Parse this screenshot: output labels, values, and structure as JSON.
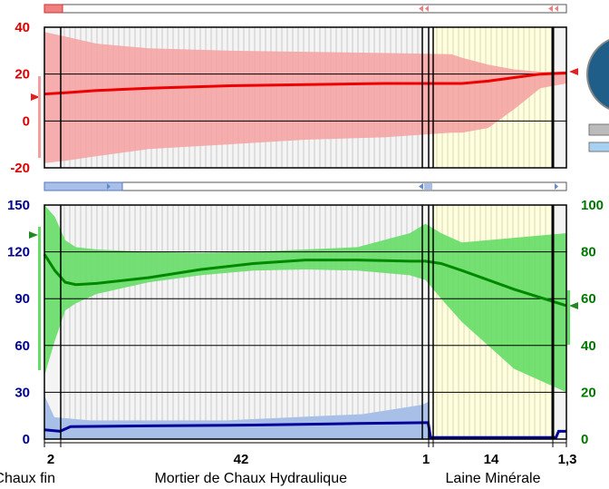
{
  "chart_data": [
    {
      "type": "line",
      "title": "",
      "y_axis": {
        "ticks": [
          "40",
          "20",
          "0",
          "-20"
        ],
        "ylim": [
          -20,
          40
        ],
        "color": "#dd0000"
      },
      "band": {
        "color": "#f4a0a0"
      },
      "series": [
        {
          "color": "#ee0000",
          "x": [
            0,
            0.04,
            0.1,
            0.2,
            0.35,
            0.5,
            0.65,
            0.78,
            0.8,
            0.85,
            0.9,
            0.95,
            1.0
          ],
          "values": [
            11.5,
            12,
            13,
            14,
            15,
            15.5,
            16,
            16,
            16,
            17,
            18.5,
            20,
            20.5
          ]
        }
      ],
      "band_upper": [
        38,
        36,
        33,
        31,
        30,
        29.5,
        29,
        28.5,
        27,
        24,
        22,
        21,
        21
      ],
      "band_lower": [
        -18,
        -17,
        -15,
        -12,
        -10,
        -8,
        -7,
        -5,
        -5,
        -3,
        5,
        14,
        16
      ]
    },
    {
      "type": "line",
      "title": "",
      "y_axis_left": {
        "ticks": [
          "150",
          "120",
          "90",
          "60",
          "30",
          "0"
        ],
        "ylim": [
          0,
          150
        ],
        "color": "#00008b"
      },
      "y_axis_right": {
        "ticks": [
          "100",
          "80",
          "60",
          "40",
          "20",
          "0"
        ],
        "ylim": [
          0,
          100
        ],
        "color": "#007700"
      },
      "bands": {
        "green": "#66dd66",
        "blue": "#a8c0e8"
      },
      "series": [
        {
          "axis": "right",
          "color": "#008800",
          "x": [
            0,
            0.02,
            0.04,
            0.06,
            0.1,
            0.2,
            0.3,
            0.4,
            0.5,
            0.6,
            0.7,
            0.73,
            0.76,
            0.8,
            0.9,
            1.0
          ],
          "values": [
            79,
            72,
            67,
            66,
            66.5,
            69,
            72.5,
            75,
            76.5,
            76.5,
            76,
            76,
            75,
            72,
            64,
            57
          ]
        },
        {
          "axis": "left",
          "color": "#000099",
          "x": [
            0,
            0.03,
            0.05,
            0.2,
            0.4,
            0.6,
            0.73,
            0.735,
            0.74,
            0.98,
            0.985,
            1.0
          ],
          "values": [
            6,
            5,
            8,
            8.5,
            9,
            10,
            10.5,
            10.5,
            1,
            1,
            5,
            5
          ]
        }
      ],
      "green_upper": [
        100,
        95,
        85,
        82,
        81,
        80,
        79.5,
        80,
        81,
        82,
        88,
        92,
        88,
        84,
        86,
        88
      ],
      "green_lower": [
        27,
        42,
        55,
        58,
        62,
        67,
        70,
        72,
        72.5,
        72,
        70,
        68,
        60,
        50,
        30,
        20
      ]
    }
  ],
  "x_axis": {
    "ticks": [
      "2",
      "42",
      "1",
      "14",
      "1,3"
    ],
    "materials": [
      "Mortier de Chaux fin",
      "Mortier de Chaux Hydraulique",
      "Laine Minérale"
    ]
  }
}
